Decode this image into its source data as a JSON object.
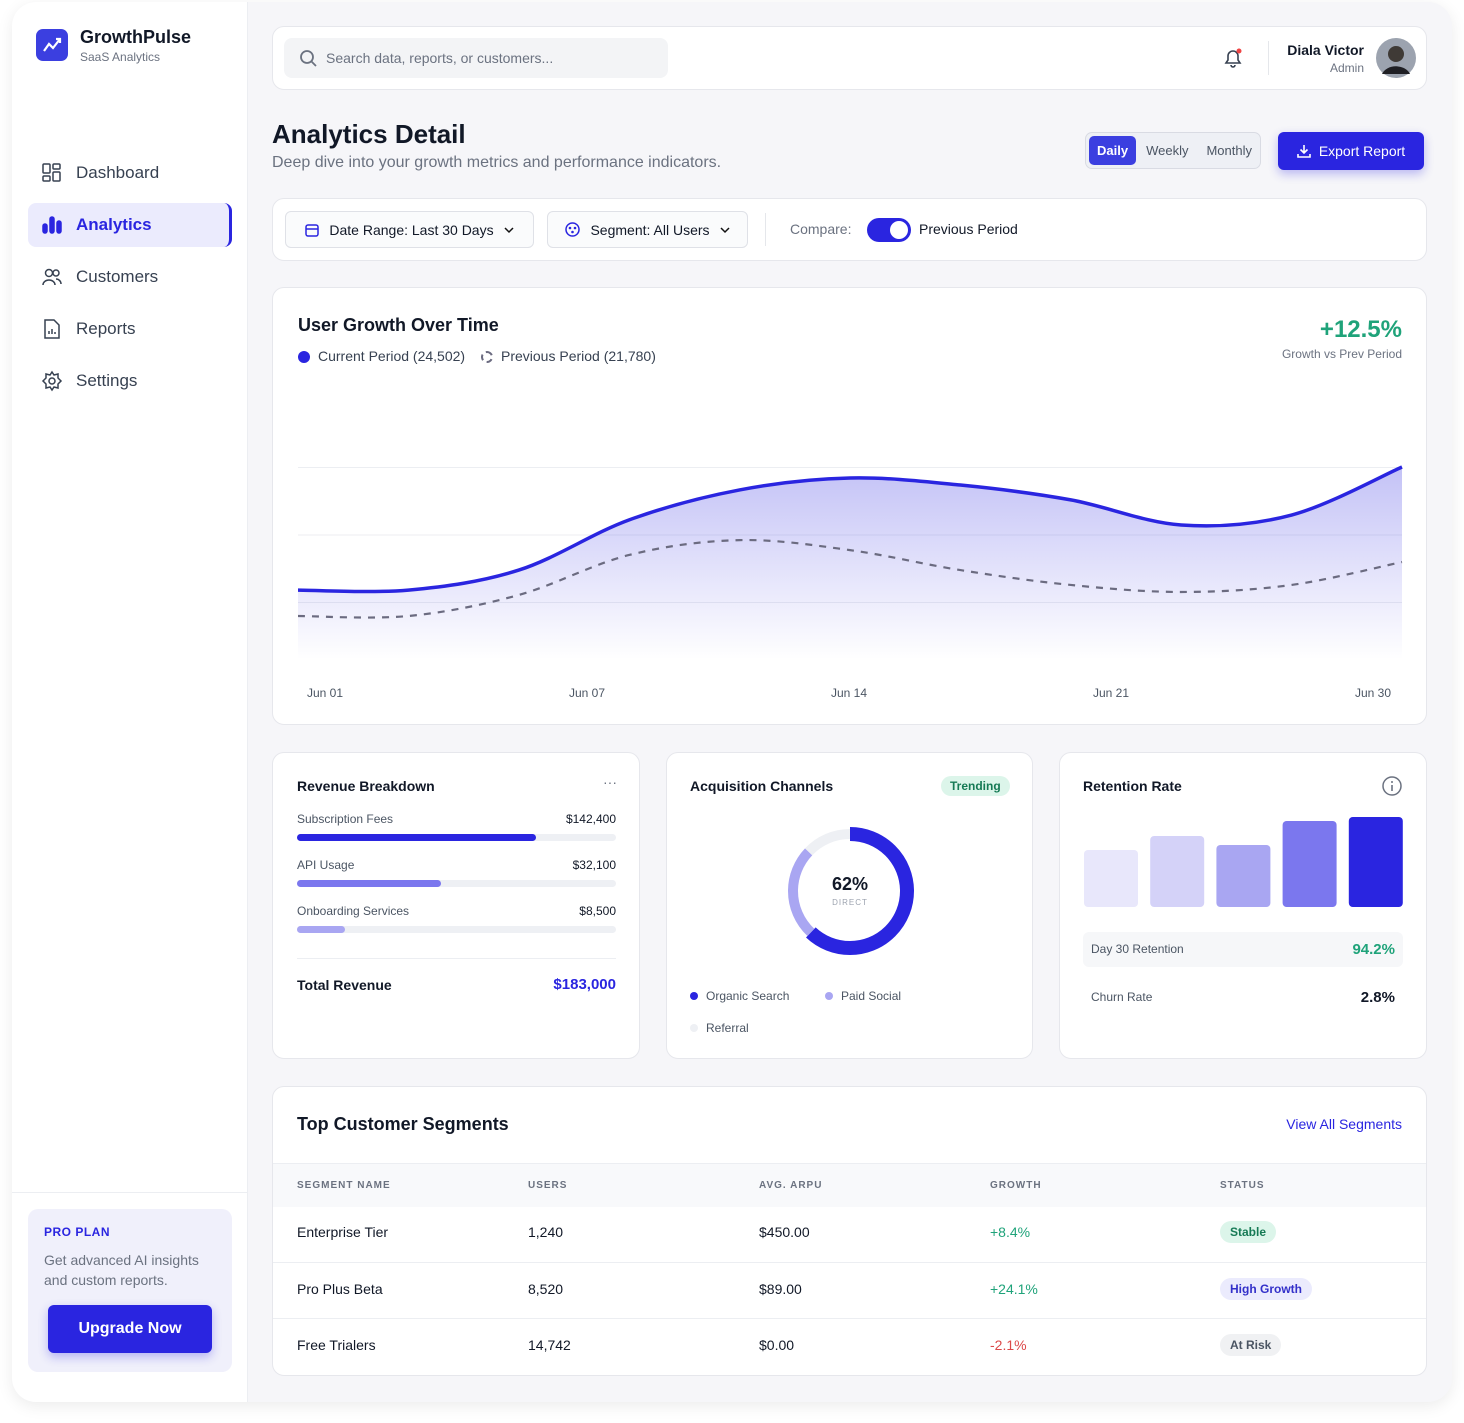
{
  "brand": {
    "name": "GrowthPulse",
    "tagline": "SaaS Analytics"
  },
  "nav": {
    "items": [
      "Dashboard",
      "Analytics",
      "Customers",
      "Reports",
      "Settings"
    ],
    "active": 1
  },
  "promo": {
    "label": "PRO PLAN",
    "text": "Get advanced AI insights and custom reports.",
    "button": "Upgrade Now"
  },
  "topbar": {
    "search_placeholder": "Search data, reports, or customers...",
    "user_name": "Diala Victor",
    "user_role": "Admin"
  },
  "header": {
    "title": "Analytics Detail",
    "subtitle": "Deep dive into your growth metrics and performance indicators.",
    "periods": [
      "Daily",
      "Weekly",
      "Monthly"
    ],
    "active_period": 0,
    "export": "Export Report"
  },
  "filters": {
    "date_range": "Date Range: Last 30 Days",
    "segment": "Segment: All Users",
    "compare_label": "Compare:",
    "compare_value": "Previous Period"
  },
  "chart_data": {
    "type": "line",
    "title": "User Growth Over Time",
    "growth": "+12.5%",
    "growth_label": "Growth vs Prev Period",
    "x_labels": [
      "Jun 01",
      "Jun 07",
      "Jun 14",
      "Jun 21",
      "Jun 30"
    ],
    "series": [
      {
        "name": "Current Period (24,502)",
        "color": "#2a25e0",
        "values": [
          29.6,
          29.6,
          37,
          55.6,
          66.7,
          71.1,
          68.5,
          63,
          53.7,
          57.4,
          75.2
        ]
      },
      {
        "name": "Previous Period (21,780)",
        "color": "#6b6b80",
        "values": [
          20,
          20,
          27.8,
          42.6,
          48.1,
          44.4,
          37,
          31.5,
          28.9,
          31.5,
          40
        ]
      }
    ],
    "ylim": [
      0,
      100
    ],
    "gridlines": [
      25,
      50,
      75
    ]
  },
  "revenue": {
    "title": "Revenue Breakdown",
    "items": [
      {
        "label": "Subscription Fees",
        "amount": "$142,400",
        "share": 75,
        "color": "#2a25e0"
      },
      {
        "label": "API Usage",
        "amount": "$32,100",
        "share": 45,
        "color": "#7b77ee"
      },
      {
        "label": "Onboarding Services",
        "amount": "$8,500",
        "share": 15,
        "color": "#a9a6f2"
      }
    ],
    "xlim": [
      0,
      100
    ],
    "total_label": "Total Revenue",
    "total": "$183,000"
  },
  "acquisition": {
    "title": "Acquisition Channels",
    "badge": "Trending",
    "chart": {
      "type": "donut",
      "labels": [
        "Organic Search",
        "Paid Social",
        "Referral"
      ],
      "values": [
        62,
        25,
        13
      ],
      "colors": [
        "#2a25e0",
        "#a9a6f2",
        "#eef0f4"
      ]
    },
    "center_value": "62%",
    "center_label": "DIRECT"
  },
  "retention": {
    "title": "Retention Rate",
    "chart": {
      "type": "bar",
      "values": [
        57,
        71,
        62,
        86,
        90
      ],
      "colors": [
        "#e8e7fb",
        "#d4d2f8",
        "#a9a6f2",
        "#7b77ee",
        "#2a25e0"
      ],
      "ylim": [
        0,
        100
      ]
    },
    "metrics": [
      {
        "label": "Day 30 Retention",
        "value": "94.2%"
      },
      {
        "label": "Churn Rate",
        "value": "2.8%"
      }
    ]
  },
  "segments": {
    "title": "Top Customer Segments",
    "link": "View All Segments",
    "columns": [
      "SEGMENT NAME",
      "USERS",
      "AVG. ARPU",
      "GROWTH",
      "STATUS"
    ],
    "rows": [
      [
        "Enterprise Tier",
        "1,240",
        "$450.00",
        "+8.4%",
        "Stable"
      ],
      [
        "Pro Plus Beta",
        "8,520",
        "$89.00",
        "+24.1%",
        "High Growth"
      ],
      [
        "Free Trialers",
        "14,742",
        "$0.00",
        "-2.1%",
        "At Risk"
      ]
    ]
  }
}
